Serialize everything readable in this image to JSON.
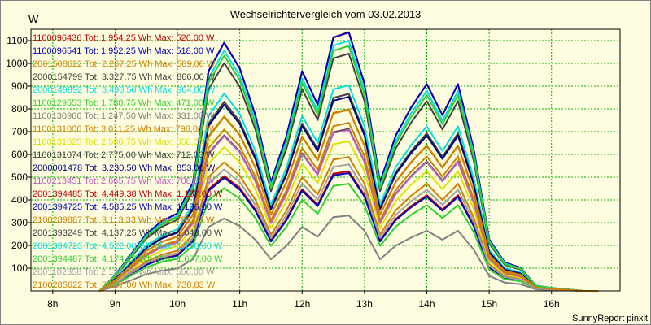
{
  "window": {
    "title": "Wechselrichtervergleich vom 03.02.2013",
    "y_unit": "W",
    "footer": "SunnyReport pinxit"
  },
  "chart_data": {
    "type": "line",
    "title": "Wechselrichtervergleich vom 03.02.2013",
    "xlabel": "",
    "ylabel": "W",
    "ylim": [
      0,
      1150
    ],
    "xlim": [
      7.65,
      17.1
    ],
    "grid": true,
    "legend_position": "left",
    "yticks": [
      100,
      200,
      300,
      400,
      500,
      600,
      700,
      800,
      900,
      1000,
      1100
    ],
    "xticks": [
      {
        "value": 8,
        "label": "8h"
      },
      {
        "value": 9,
        "label": "9h"
      },
      {
        "value": 10,
        "label": "10h"
      },
      {
        "value": 11,
        "label": "11h"
      },
      {
        "value": 12,
        "label": "12h"
      },
      {
        "value": 13,
        "label": "13h"
      },
      {
        "value": 14,
        "label": "14h"
      },
      {
        "value": 15,
        "label": "15h"
      },
      {
        "value": 16,
        "label": "16h"
      }
    ],
    "x": [
      8.75,
      9.0,
      9.25,
      9.5,
      9.75,
      10.0,
      10.25,
      10.5,
      10.75,
      11.0,
      11.25,
      11.5,
      11.75,
      12.0,
      12.25,
      12.5,
      12.75,
      13.0,
      13.25,
      13.5,
      13.75,
      14.0,
      14.25,
      14.5,
      14.75,
      15.0,
      15.25,
      15.5,
      15.75,
      16.0,
      16.25,
      16.5,
      16.75
    ],
    "shape": [
      0.0,
      0.06,
      0.14,
      0.22,
      0.27,
      0.3,
      0.42,
      0.85,
      0.96,
      0.86,
      0.68,
      0.42,
      0.6,
      0.85,
      0.72,
      0.98,
      1.0,
      0.8,
      0.42,
      0.6,
      0.71,
      0.8,
      0.68,
      0.8,
      0.55,
      0.2,
      0.11,
      0.09,
      0.02,
      0.012,
      0.006,
      0.0,
      0.0
    ],
    "series": [
      {
        "legend": "1100096436 Tot: 1.954,25 Wh Max: 526,00 W",
        "max": 526.0,
        "color": "#c00000"
      },
      {
        "legend": "1100096541 Tot: 1.952,25 Wh Max: 518,00 W",
        "max": 518.0,
        "color": "#0000c0"
      },
      {
        "legend": "2001508622 Tot: 2.267,25 Wh Max: 589,00 W",
        "max": 589.0,
        "color": "#d08000"
      },
      {
        "legend": "2000154799 Tot: 3.327,75 Wh Max: 866,00 W",
        "max": 866.0,
        "color": "#404040"
      },
      {
        "legend": "2000149892 Tot: 3.490,50 Wh Max: 904,00 W",
        "max": 904.0,
        "color": "#00e0e0"
      },
      {
        "legend": "1100129553 Tot: 1.788,75 Wh Max: 471,00 W",
        "max": 471.0,
        "color": "#30d030"
      },
      {
        "legend": "1100130966 Tot: 1.247,50 Wh Max: 331,00 W",
        "max": 331.0,
        "color": "#808080"
      },
      {
        "legend": "1100131006 Tot: 3.011,25 Wh Max: 796,00 W",
        "max": 796.0,
        "color": "#d08000"
      },
      {
        "legend": "1100131025 Tot: 2.560,75 Wh Max: 658,00 W",
        "max": 658.0,
        "color": "#e0e000"
      },
      {
        "legend": "1100131074 Tot: 2.775,00 Wh Max: 712,00 W",
        "max": 712.0,
        "color": "#404040"
      },
      {
        "legend": "2000001478 Tot: 3.230,50 Wh Max: 853,00 W",
        "max": 853.0,
        "color": "#000080"
      },
      {
        "legend": "1100213451 Tot: 2.665,75 Wh Max: 708,00 W",
        "max": 708.0,
        "color": "#c060c0"
      },
      {
        "legend": "2001394485 Tot: 4.449,38 Wh Max: 1.137,00 W",
        "max": 1137.0,
        "color": "#c00000"
      },
      {
        "legend": "2001394725 Tot: 4.585,25 Wh Max: 1.136,00 W",
        "max": 1136.0,
        "color": "#0000c0"
      },
      {
        "legend": "2100289887 Tot: 3.113,33 Wh Max: 799,00 W",
        "max": 799.0,
        "color": "#d08000"
      },
      {
        "legend": "2001393249 Tot: 4.137,25 Wh Max: 1.043,00 W",
        "max": 1043.0,
        "color": "#404040"
      },
      {
        "legend": "2001394723 Tot: 4.522,00 Wh Max: 1.100,00 W",
        "max": 1100.0,
        "color": "#00e0e0"
      },
      {
        "legend": "2001394487 Tot: 4.174,25 Wh Max: 1.077,00 W",
        "max": 1077.0,
        "color": "#30d030"
      },
      {
        "legend": "2001102358 Tot: 2.124,75 Wh Max: 556,00 W",
        "max": 556.0,
        "color": "#a0a0a0"
      },
      {
        "legend": "2100285622 Tot: 2.857,00 Wh Max: 738,83 W",
        "max": 738.83,
        "color": "#d08000"
      }
    ]
  }
}
